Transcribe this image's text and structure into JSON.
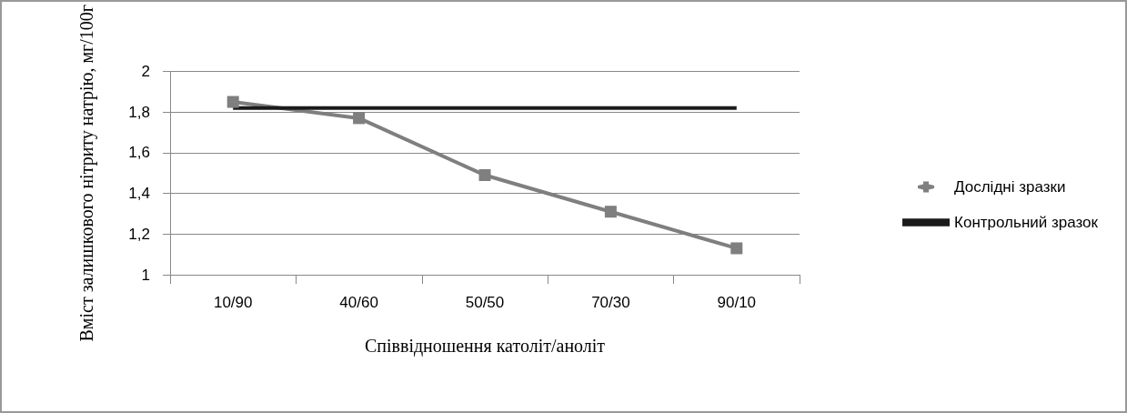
{
  "chart_data": {
    "type": "line",
    "xlabel": "Співвідношення католіт/аноліт",
    "ylabel": "Вміст залишкового нітриту натрію, мг/100г",
    "categories": [
      "10/90",
      "40/60",
      "50/50",
      "70/30",
      "90/10"
    ],
    "series": [
      {
        "name": "Дослідні зразки",
        "color": "#7f7f7f",
        "values": [
          1.85,
          1.77,
          1.49,
          1.31,
          1.13
        ],
        "marker": "square"
      },
      {
        "name": "Контрольний зразок",
        "color": "#1a1a1a",
        "values": [
          1.82,
          1.82,
          1.82,
          1.82,
          1.82
        ],
        "marker": "none"
      }
    ],
    "ylim": [
      1,
      2
    ],
    "yticks": [
      1,
      {
        "value": 1.2,
        "label": "1,2"
      },
      {
        "value": 1.4,
        "label": "1,4"
      },
      {
        "value": 1.6,
        "label": "1,6"
      },
      {
        "value": 1.8,
        "label": "1,8"
      },
      2
    ],
    "grid": "y",
    "legend": "right"
  }
}
